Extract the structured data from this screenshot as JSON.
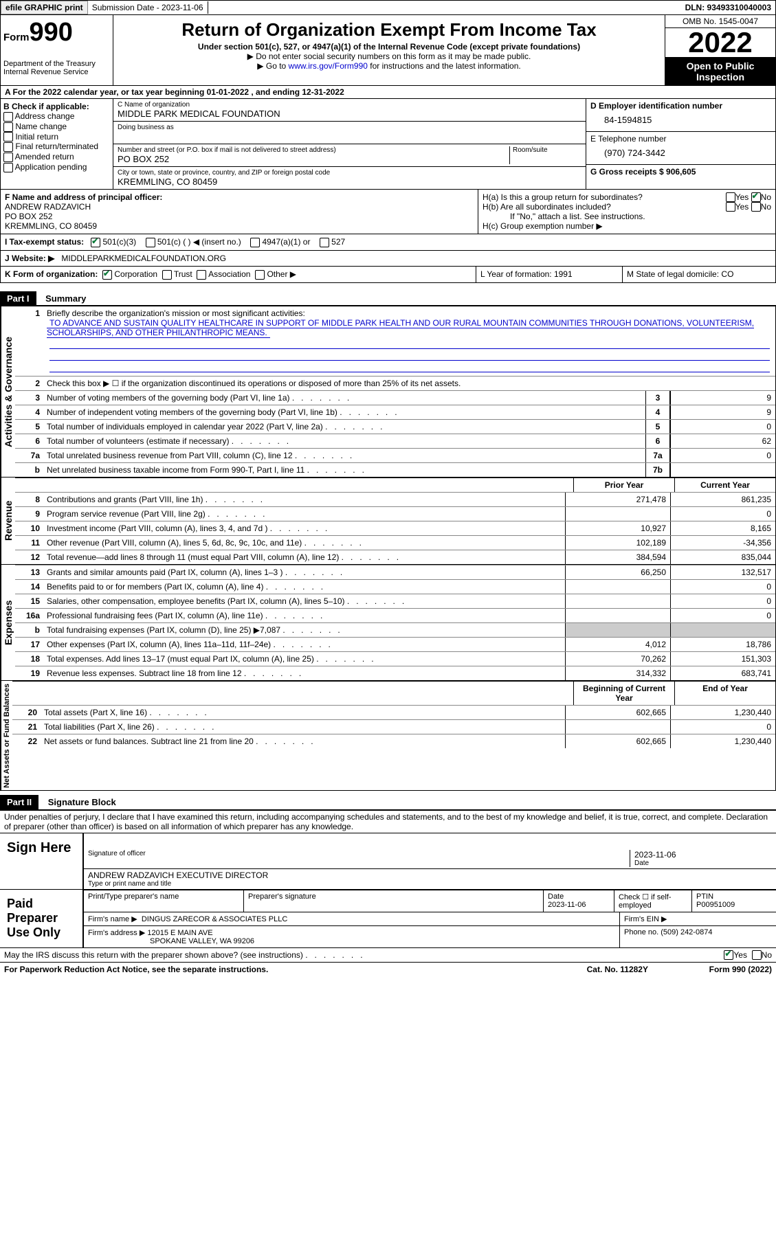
{
  "topbar": {
    "efile": "efile GRAPHIC print",
    "submission_label": "Submission Date - 2023-11-06",
    "dln_label": "DLN: 93493310040003"
  },
  "header": {
    "form_label": "Form",
    "form_num": "990",
    "title": "Return of Organization Exempt From Income Tax",
    "sub1": "Under section 501(c), 527, or 4947(a)(1) of the Internal Revenue Code (except private foundations)",
    "sub2": "▶ Do not enter social security numbers on this form as it may be made public.",
    "sub3_pre": "▶ Go to ",
    "sub3_link": "www.irs.gov/Form990",
    "sub3_post": " for instructions and the latest information.",
    "dept": "Department of the Treasury Internal Revenue Service",
    "omb": "OMB No. 1545-0047",
    "year": "2022",
    "open": "Open to Public Inspection"
  },
  "row_a": "A For the 2022 calendar year, or tax year beginning 01-01-2022   , and ending 12-31-2022",
  "col_b": {
    "title": "B Check if applicable:",
    "items": [
      "Address change",
      "Name change",
      "Initial return",
      "Final return/terminated",
      "Amended return",
      "Application pending"
    ]
  },
  "col_c": {
    "name_label": "C Name of organization",
    "name": "MIDDLE PARK MEDICAL FOUNDATION",
    "dba_label": "Doing business as",
    "street_label": "Number and street (or P.O. box if mail is not delivered to street address)",
    "room_label": "Room/suite",
    "street": "PO BOX 252",
    "city_label": "City or town, state or province, country, and ZIP or foreign postal code",
    "city": "KREMMLING, CO  80459"
  },
  "col_d": {
    "ein_label": "D Employer identification number",
    "ein": "84-1594815",
    "phone_label": "E Telephone number",
    "phone": "(970) 724-3442",
    "gross_label": "G Gross receipts $ 906,605"
  },
  "col_f": {
    "label": "F Name and address of principal officer:",
    "name": "ANDREW RADZAVICH",
    "street": "PO BOX 252",
    "city": "KREMMLING, CO  80459"
  },
  "col_h": {
    "ha": "H(a)  Is this a group return for subordinates?",
    "hb": "H(b)  Are all subordinates included?",
    "hb_note": "If \"No,\" attach a list. See instructions.",
    "hc": "H(c)  Group exemption number ▶",
    "yes": "Yes",
    "no": "No"
  },
  "row_i": {
    "label": "I   Tax-exempt status:",
    "opts": [
      "501(c)(3)",
      "501(c) (  ) ◀ (insert no.)",
      "4947(a)(1) or",
      "527"
    ]
  },
  "row_j": {
    "label": "J   Website: ▶",
    "value": "MIDDLEPARKMEDICALFOUNDATION.ORG"
  },
  "row_k": {
    "label": "K Form of organization:",
    "opts": [
      "Corporation",
      "Trust",
      "Association",
      "Other ▶"
    ],
    "l_label": "L Year of formation: 1991",
    "m_label": "M State of legal domicile: CO"
  },
  "part1": {
    "header": "Part I",
    "title": "Summary",
    "q1_label": "Briefly describe the organization's mission or most significant activities:",
    "q1_text": "TO ADVANCE AND SUSTAIN QUALITY HEALTHCARE IN SUPPORT OF MIDDLE PARK HEALTH AND OUR RURAL MOUNTAIN COMMUNITIES THROUGH DONATIONS, VOLUNTEERISM, SCHOLARSHIPS, AND OTHER PHILANTHROPIC MEANS.",
    "q2": "Check this box ▶ ☐  if the organization discontinued its operations or disposed of more than 25% of its net assets.",
    "lines_gov": [
      {
        "n": "3",
        "d": "Number of voting members of the governing body (Part VI, line 1a)",
        "b": "3",
        "v": "9"
      },
      {
        "n": "4",
        "d": "Number of independent voting members of the governing body (Part VI, line 1b)",
        "b": "4",
        "v": "9"
      },
      {
        "n": "5",
        "d": "Total number of individuals employed in calendar year 2022 (Part V, line 2a)",
        "b": "5",
        "v": "0"
      },
      {
        "n": "6",
        "d": "Total number of volunteers (estimate if necessary)",
        "b": "6",
        "v": "62"
      },
      {
        "n": "7a",
        "d": "Total unrelated business revenue from Part VIII, column (C), line 12",
        "b": "7a",
        "v": "0"
      },
      {
        "n": "b",
        "d": "Net unrelated business taxable income from Form 990-T, Part I, line 11",
        "b": "7b",
        "v": ""
      }
    ],
    "prior_label": "Prior Year",
    "current_label": "Current Year",
    "lines_rev": [
      {
        "n": "8",
        "d": "Contributions and grants (Part VIII, line 1h)",
        "p": "271,478",
        "c": "861,235"
      },
      {
        "n": "9",
        "d": "Program service revenue (Part VIII, line 2g)",
        "p": "",
        "c": "0"
      },
      {
        "n": "10",
        "d": "Investment income (Part VIII, column (A), lines 3, 4, and 7d )",
        "p": "10,927",
        "c": "8,165"
      },
      {
        "n": "11",
        "d": "Other revenue (Part VIII, column (A), lines 5, 6d, 8c, 9c, 10c, and 11e)",
        "p": "102,189",
        "c": "-34,356"
      },
      {
        "n": "12",
        "d": "Total revenue—add lines 8 through 11 (must equal Part VIII, column (A), line 12)",
        "p": "384,594",
        "c": "835,044"
      }
    ],
    "lines_exp": [
      {
        "n": "13",
        "d": "Grants and similar amounts paid (Part IX, column (A), lines 1–3 )",
        "p": "66,250",
        "c": "132,517"
      },
      {
        "n": "14",
        "d": "Benefits paid to or for members (Part IX, column (A), line 4)",
        "p": "",
        "c": "0"
      },
      {
        "n": "15",
        "d": "Salaries, other compensation, employee benefits (Part IX, column (A), lines 5–10)",
        "p": "",
        "c": "0"
      },
      {
        "n": "16a",
        "d": "Professional fundraising fees (Part IX, column (A), line 11e)",
        "p": "",
        "c": "0"
      },
      {
        "n": "b",
        "d": "Total fundraising expenses (Part IX, column (D), line 25) ▶7,087",
        "p": "shade",
        "c": "shade"
      },
      {
        "n": "17",
        "d": "Other expenses (Part IX, column (A), lines 11a–11d, 11f–24e)",
        "p": "4,012",
        "c": "18,786"
      },
      {
        "n": "18",
        "d": "Total expenses. Add lines 13–17 (must equal Part IX, column (A), line 25)",
        "p": "70,262",
        "c": "151,303"
      },
      {
        "n": "19",
        "d": "Revenue less expenses. Subtract line 18 from line 12",
        "p": "314,332",
        "c": "683,741"
      }
    ],
    "begin_label": "Beginning of Current Year",
    "end_label": "End of Year",
    "lines_net": [
      {
        "n": "20",
        "d": "Total assets (Part X, line 16)",
        "p": "602,665",
        "c": "1,230,440"
      },
      {
        "n": "21",
        "d": "Total liabilities (Part X, line 26)",
        "p": "",
        "c": "0"
      },
      {
        "n": "22",
        "d": "Net assets or fund balances. Subtract line 21 from line 20",
        "p": "602,665",
        "c": "1,230,440"
      }
    ],
    "vlabels": {
      "gov": "Activities & Governance",
      "rev": "Revenue",
      "exp": "Expenses",
      "net": "Net Assets or Fund Balances"
    }
  },
  "part2": {
    "header": "Part II",
    "title": "Signature Block",
    "decl": "Under penalties of perjury, I declare that I have examined this return, including accompanying schedules and statements, and to the best of my knowledge and belief, it is true, correct, and complete. Declaration of preparer (other than officer) is based on all information of which preparer has any knowledge.",
    "sign_here": "Sign Here",
    "sig_officer": "Signature of officer",
    "date_label": "Date",
    "sig_date": "2023-11-06",
    "name_title": "ANDREW RADZAVICH  EXECUTIVE DIRECTOR",
    "name_title_label": "Type or print name and title",
    "paid": "Paid Preparer Use Only",
    "prep_name_label": "Print/Type preparer's name",
    "prep_sig_label": "Preparer's signature",
    "prep_date_label": "Date",
    "prep_date": "2023-11-06",
    "check_self": "Check ☐ if self-employed",
    "ptin_label": "PTIN",
    "ptin": "P00951009",
    "firm_name_label": "Firm's name   ▶",
    "firm_name": "DINGUS ZARECOR & ASSOCIATES PLLC",
    "firm_ein_label": "Firm's EIN ▶",
    "firm_addr_label": "Firm's address ▶",
    "firm_addr1": "12015 E MAIN AVE",
    "firm_addr2": "SPOKANE VALLEY, WA  99206",
    "firm_phone_label": "Phone no. (509) 242-0874",
    "discuss": "May the IRS discuss this return with the preparer shown above? (see instructions)"
  },
  "footer": {
    "left": "For Paperwork Reduction Act Notice, see the separate instructions.",
    "mid": "Cat. No. 11282Y",
    "right": "Form 990 (2022)"
  }
}
